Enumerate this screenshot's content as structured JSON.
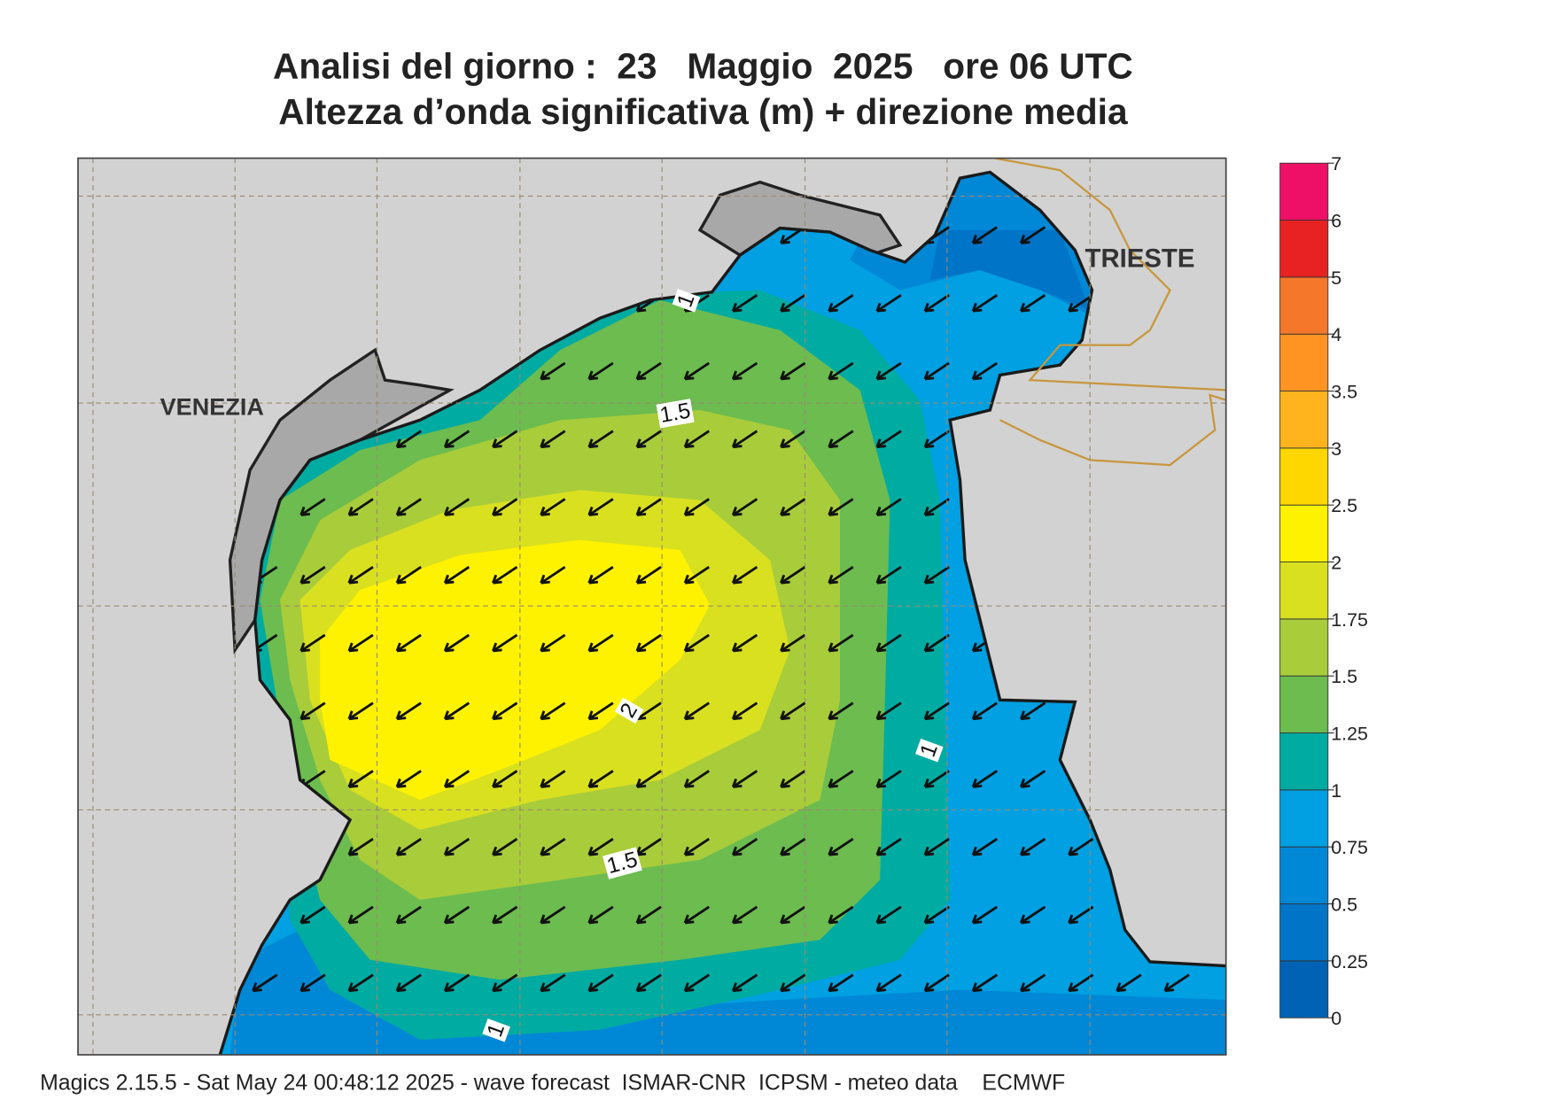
{
  "title": [
    "Analisi del giorno :  23   Maggio  2025   ore 06 UTC",
    "Altezza d’onda significativa (m) + direzione media"
  ],
  "places": [
    "VENEZIA",
    "TRIESTE"
  ],
  "contour_labels": [
    1.5,
    1.5,
    2,
    1,
    1,
    1
  ],
  "colorbar": {
    "levels": [
      0,
      0.25,
      0.5,
      0.75,
      1,
      1.25,
      1.5,
      1.75,
      2,
      2.5,
      3,
      3.5,
      4,
      5,
      6,
      7
    ],
    "colors": [
      "#0062b4",
      "#0074c6",
      "#0088d6",
      "#00a0e2",
      "#00aba2",
      "#6cbc50",
      "#a9cc3a",
      "#d9e020",
      "#fff200",
      "#ffd700",
      "#ffb41e",
      "#ff9422",
      "#f5782a",
      "#e82222",
      "#ee1066"
    ]
  },
  "footer": "Magics 2.15.5 - Sat May 24 00:48:12 2025 - wave forecast  ISMAR-CNR  ICPSM - meteo data    ECMWF"
}
